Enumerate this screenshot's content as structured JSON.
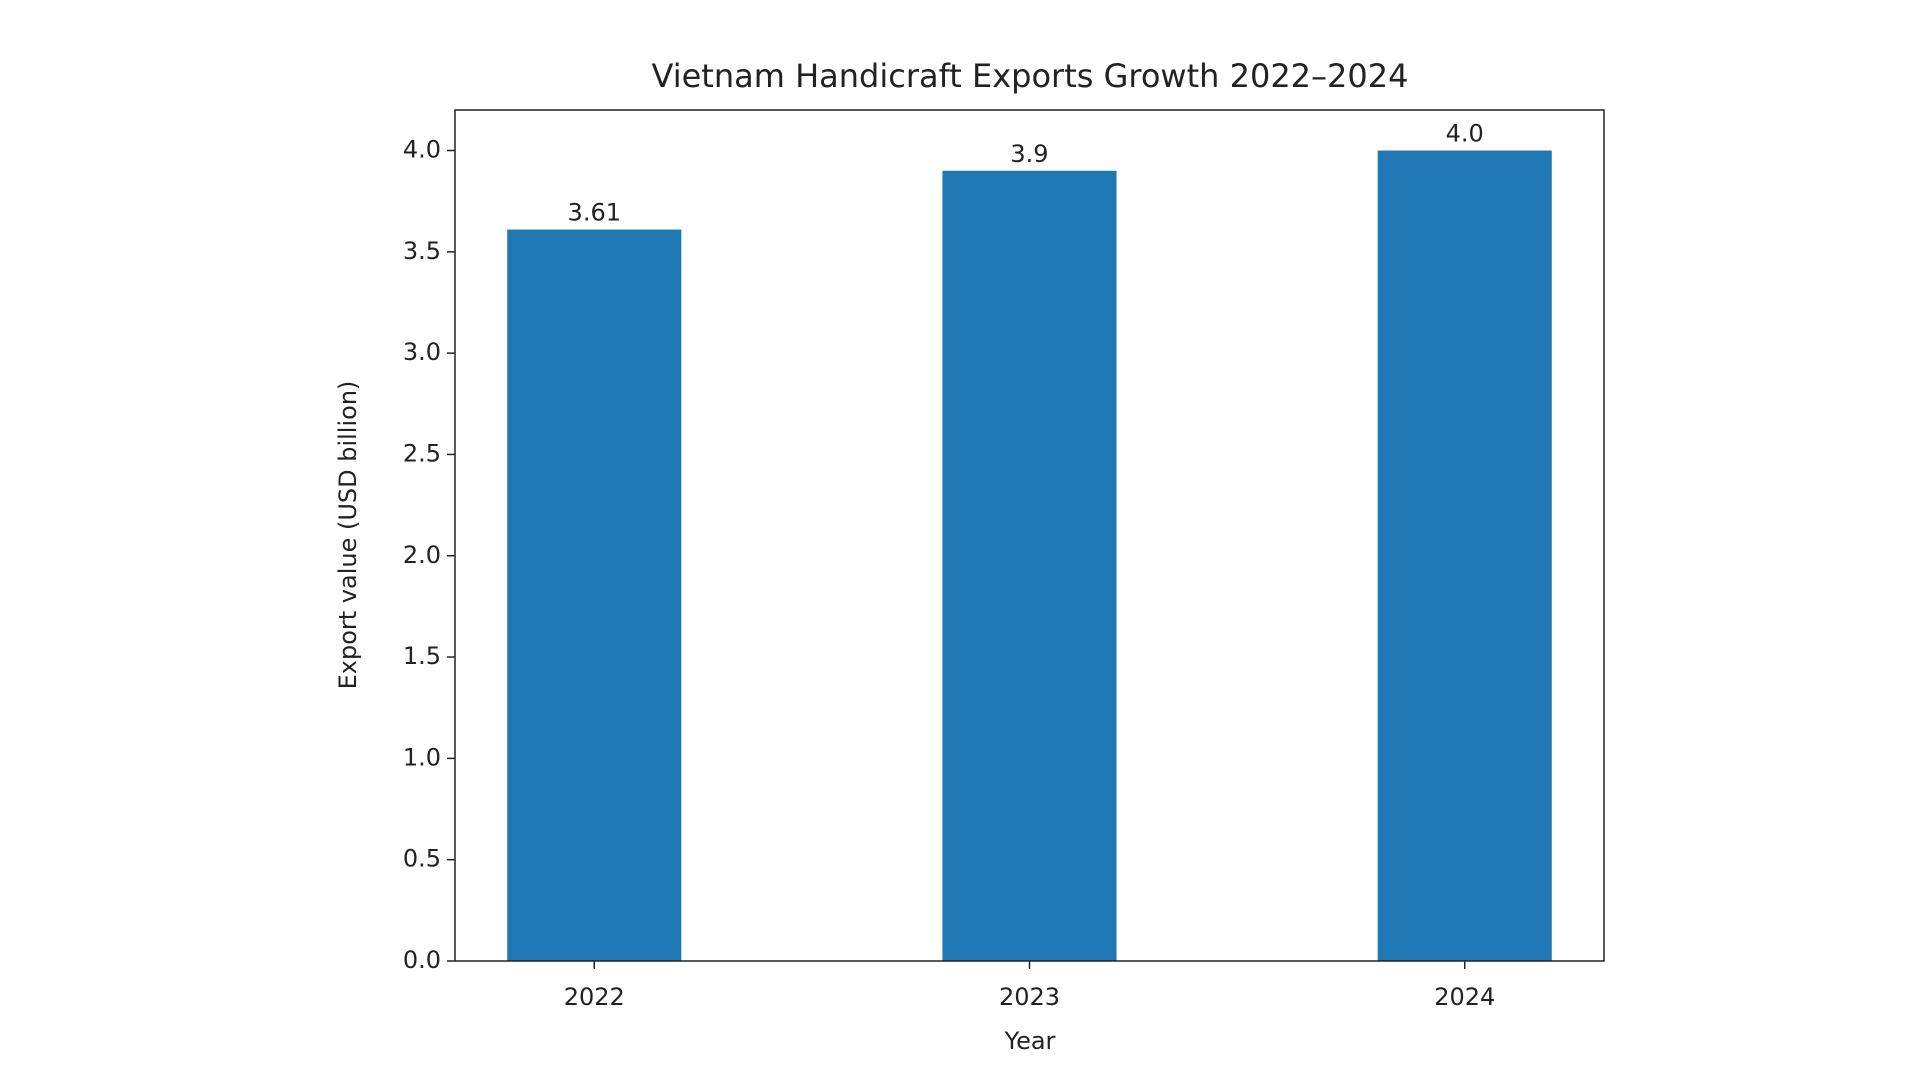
{
  "chart_data": {
    "type": "bar",
    "title": "Vietnam Handicraft Exports Growth 2022–2024",
    "x_label": "Year",
    "y_label": "Export value (USD billion)",
    "categories": [
      "2022",
      "2023",
      "2024"
    ],
    "values": [
      3.61,
      3.9,
      4.0
    ],
    "value_labels": [
      "3.61",
      "3.9",
      "4.0"
    ],
    "color": "#1f77b4",
    "ylim": [
      0,
      4.2
    ],
    "yticks": [
      {
        "value": 0,
        "label": "0.0"
      },
      0.5,
      {
        "value": 1,
        "label": "1.0"
      },
      1.5,
      {
        "value": 2,
        "label": "2.0"
      },
      2.5,
      {
        "value": 3,
        "label": "3.0"
      },
      3.5,
      {
        "value": 4,
        "label": "4.0"
      }
    ]
  }
}
